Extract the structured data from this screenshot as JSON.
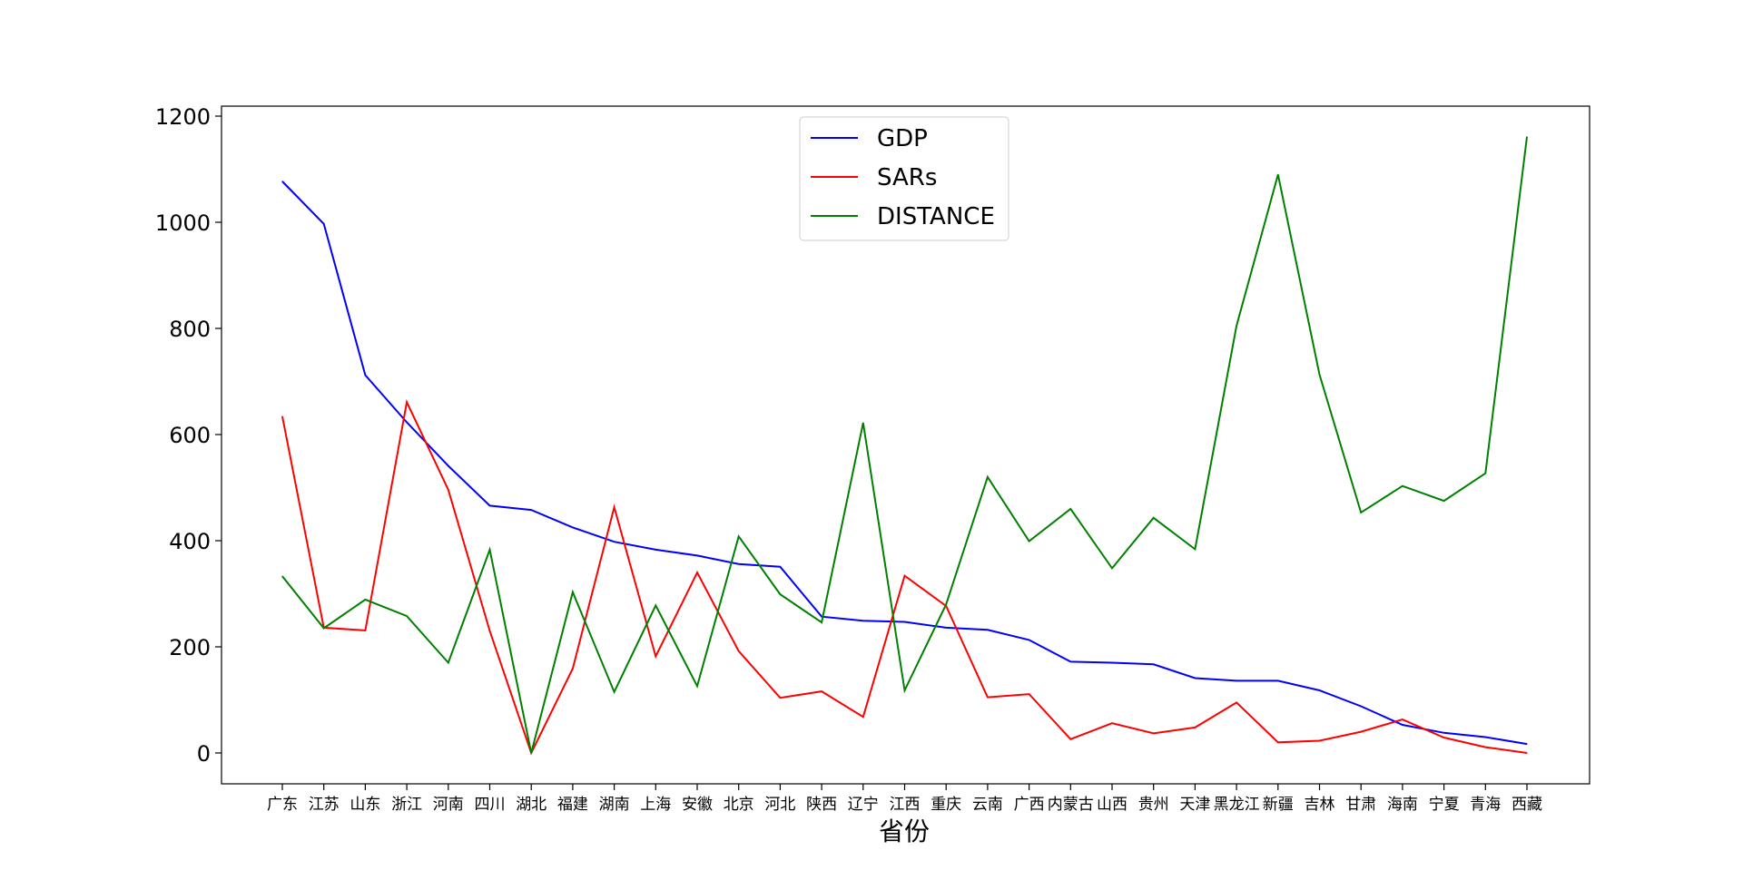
{
  "chart_data": {
    "type": "line",
    "title": "",
    "xlabel": "省份",
    "ylabel": "",
    "ylim": [
      -60,
      1220
    ],
    "yticks": [
      0,
      200,
      400,
      600,
      800,
      1000,
      1200
    ],
    "grid": false,
    "legend_position": "top-center",
    "categories": [
      "广东",
      "江苏",
      "山东",
      "浙江",
      "河南",
      "四川",
      "湖北",
      "福建",
      "湖南",
      "上海",
      "安徽",
      "北京",
      "河北",
      "陕西",
      "辽宁",
      "江西",
      "重庆",
      "云南",
      "广西",
      "内蒙古",
      "山西",
      "贵州",
      "天津",
      "黑龙江",
      "新疆",
      "吉林",
      "甘肃",
      "海南",
      "宁夏",
      "青海",
      "西藏"
    ],
    "series": [
      {
        "name": "GDP",
        "color": "#0000ff",
        "values": [
          1077,
          997,
          712,
          623,
          541,
          466,
          458,
          425,
          398,
          383,
          372,
          356,
          351,
          257,
          249,
          247,
          236,
          232,
          213,
          172,
          170,
          167,
          141,
          136,
          136,
          118,
          88,
          53,
          38,
          30,
          17
        ]
      },
      {
        "name": "SARs",
        "color": "#ff0000",
        "values": [
          634,
          236,
          231,
          661,
          496,
          230,
          0,
          159,
          463,
          182,
          340,
          192,
          104,
          116,
          68,
          334,
          277,
          105,
          111,
          26,
          56,
          37,
          48,
          95,
          20,
          23,
          40,
          63,
          29,
          11,
          0
        ]
      },
      {
        "name": "DISTANCE",
        "color": "#008000",
        "values": [
          333,
          235,
          289,
          258,
          170,
          383,
          0,
          303,
          115,
          278,
          126,
          408,
          299,
          246,
          622,
          118,
          280,
          520,
          399,
          460,
          348,
          443,
          384,
          805,
          1090,
          713,
          453,
          503,
          475,
          527,
          1161
        ]
      }
    ]
  }
}
